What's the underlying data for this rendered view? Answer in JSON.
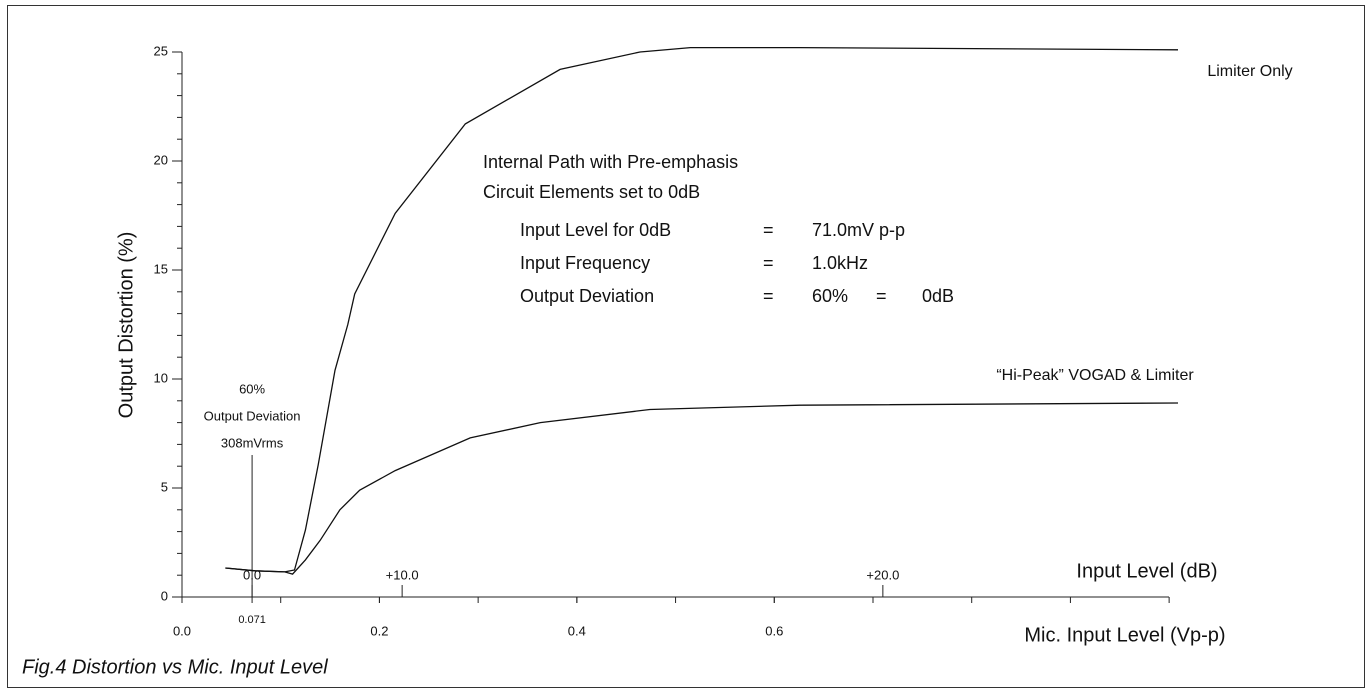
{
  "chart_data": {
    "type": "line",
    "caption": "Fig.4 Distortion vs Mic. Input Level",
    "x_label": "Mic. Input Level (Vp-p)",
    "y_label": "Output Distortion (%)",
    "x2_label": "Input Level (dB)",
    "xlim": [
      0,
      1.01
    ],
    "ylim": [
      0,
      25
    ],
    "xticks": [
      {
        "value": 0,
        "label": "0.0"
      },
      {
        "value": 0.071,
        "label": "0.071"
      },
      {
        "value": 0.2,
        "label": "0.2"
      },
      {
        "value": 0.4,
        "label": "0.4"
      },
      {
        "value": 0.6,
        "label": "0.6"
      }
    ],
    "yticks": [
      0,
      5,
      10,
      15,
      20,
      25
    ],
    "x_minor_step": 0.1,
    "y_minor_step": 1,
    "x2ticks": [
      {
        "value": 0.071,
        "label": "0.0"
      },
      {
        "value": 0.223,
        "label": "+10.0"
      },
      {
        "value": 0.71,
        "label": "+20.0"
      }
    ],
    "marker_line": {
      "x": 0.071,
      "lines": [
        "60%",
        "Output Deviation",
        "308mVrms"
      ]
    },
    "info_box": {
      "heading": [
        "Internal Path with Pre-emphasis",
        "Circuit Elements set to 0dB"
      ],
      "rows": [
        [
          "Input Level for 0dB",
          "=",
          "71.0mV p-p"
        ],
        [
          "Input Frequency",
          "=",
          "1.0kHz"
        ],
        [
          "Output Deviation",
          "=",
          "60%",
          "=",
          "0dB"
        ]
      ]
    },
    "series": [
      {
        "name": "Limiter Only",
        "color": "#111111",
        "x": [
          0.044,
          0.074,
          0.104,
          0.114,
          0.125,
          0.138,
          0.155,
          0.168,
          0.175,
          0.216,
          0.287,
          0.383,
          0.464,
          0.515,
          0.626,
          1.009
        ],
        "values": [
          1.33,
          1.2,
          1.15,
          1.24,
          3.07,
          6.06,
          10.4,
          12.5,
          13.9,
          17.6,
          21.7,
          24.2,
          25.0,
          25.2,
          25.2,
          25.1
        ]
      },
      {
        "name": "“Hi-Peak” VOGAD & Limiter",
        "color": "#111111",
        "x": [
          0.044,
          0.074,
          0.104,
          0.112,
          0.125,
          0.14,
          0.16,
          0.18,
          0.216,
          0.292,
          0.363,
          0.474,
          0.626,
          1.009
        ],
        "values": [
          1.33,
          1.2,
          1.15,
          1.05,
          1.7,
          2.6,
          4.0,
          4.9,
          5.8,
          7.3,
          8.0,
          8.6,
          8.8,
          8.9
        ]
      }
    ]
  }
}
